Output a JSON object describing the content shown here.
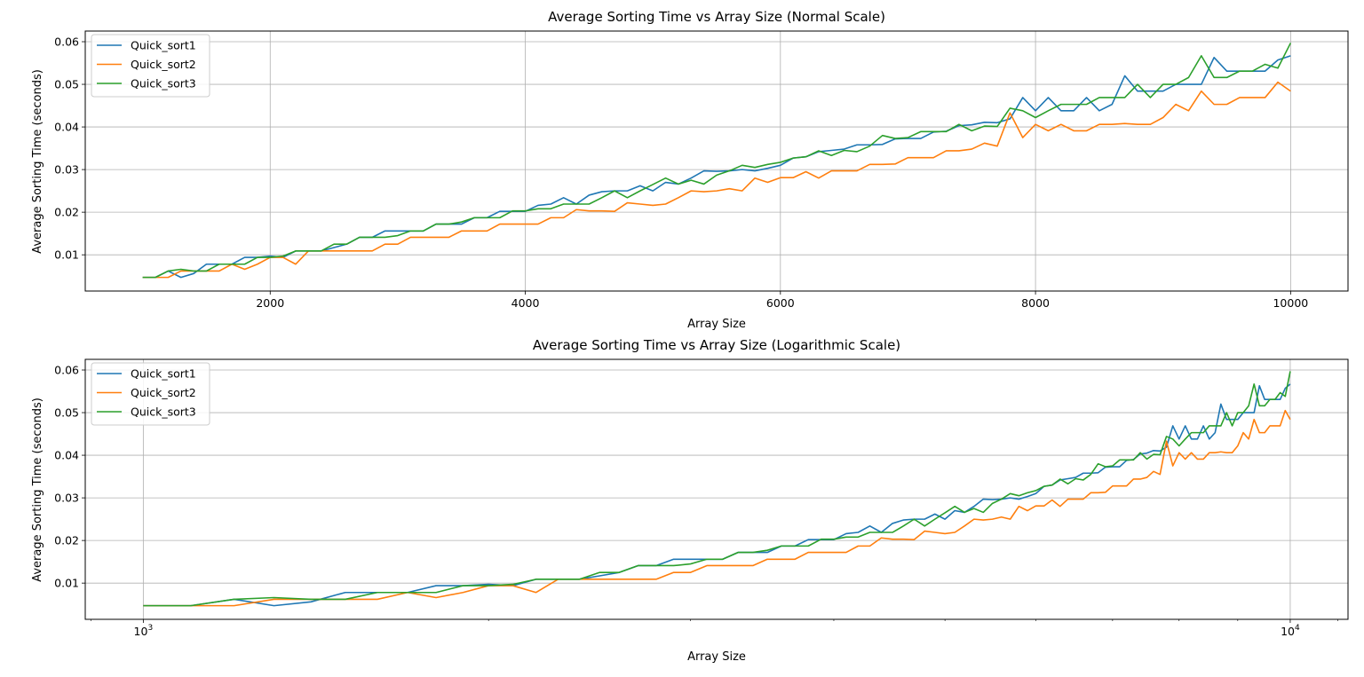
{
  "chart_data": [
    {
      "type": "line",
      "title": "Average Sorting Time vs Array Size (Normal Scale)",
      "xlabel": "Array Size",
      "ylabel": "Average Sorting Time (seconds)",
      "xscale": "linear",
      "xlim": [
        550,
        10450
      ],
      "ylim": [
        0.0015,
        0.0625
      ],
      "xticks": [
        2000,
        4000,
        6000,
        8000,
        10000
      ],
      "xtick_labels": [
        "2000",
        "4000",
        "6000",
        "8000",
        "10000"
      ],
      "yticks": [
        0.01,
        0.02,
        0.03,
        0.04,
        0.05,
        0.06
      ],
      "ytick_labels": [
        "0.01",
        "0.02",
        "0.03",
        "0.04",
        "0.05",
        "0.06"
      ],
      "grid": true,
      "legend": "top-left",
      "x": [
        1000,
        1100,
        1200,
        1300,
        1400,
        1500,
        1600,
        1700,
        1800,
        1900,
        2000,
        2100,
        2200,
        2300,
        2400,
        2500,
        2600,
        2700,
        2800,
        2900,
        3000,
        3100,
        3200,
        3300,
        3400,
        3500,
        3600,
        3700,
        3800,
        3900,
        4000,
        4100,
        4200,
        4300,
        4400,
        4500,
        4600,
        4700,
        4800,
        4900,
        5000,
        5100,
        5200,
        5300,
        5400,
        5500,
        5600,
        5700,
        5800,
        5900,
        6000,
        6100,
        6200,
        6300,
        6400,
        6500,
        6600,
        6700,
        6800,
        6900,
        7000,
        7100,
        7200,
        7300,
        7400,
        7500,
        7600,
        7700,
        7800,
        7900,
        8000,
        8100,
        8200,
        8300,
        8400,
        8500,
        8600,
        8700,
        8800,
        8900,
        9000,
        9100,
        9200,
        9300,
        9400,
        9500,
        9600,
        9700,
        9800,
        9900,
        10000
      ],
      "series": [
        {
          "name": "Quick_sort1",
          "color": "#1f77b4",
          "values": [
            0.0047,
            0.0047,
            0.0062,
            0.0047,
            0.0056,
            0.0078,
            0.0078,
            0.0078,
            0.0094,
            0.0094,
            0.0097,
            0.0094,
            0.0109,
            0.0109,
            0.0109,
            0.0117,
            0.0125,
            0.0141,
            0.0141,
            0.0156,
            0.0156,
            0.0156,
            0.0156,
            0.0172,
            0.0172,
            0.0172,
            0.0187,
            0.0187,
            0.0202,
            0.0202,
            0.0202,
            0.0216,
            0.0219,
            0.0234,
            0.0219,
            0.024,
            0.0248,
            0.025,
            0.025,
            0.0262,
            0.025,
            0.027,
            0.0266,
            0.028,
            0.0297,
            0.0296,
            0.0297,
            0.03,
            0.0297,
            0.0303,
            0.031,
            0.0327,
            0.033,
            0.0342,
            0.0345,
            0.0348,
            0.0358,
            0.0358,
            0.0359,
            0.0372,
            0.0373,
            0.0373,
            0.0388,
            0.039,
            0.0403,
            0.0405,
            0.0411,
            0.041,
            0.0419,
            0.0469,
            0.0438,
            0.0469,
            0.0438,
            0.0438,
            0.0469,
            0.0438,
            0.0453,
            0.052,
            0.0484,
            0.0484,
            0.0484,
            0.05,
            0.05,
            0.05,
            0.0563,
            0.0531,
            0.0531,
            0.0531,
            0.0531,
            0.0557,
            0.0567
          ]
        },
        {
          "name": "Quick_sort2",
          "color": "#ff7f0e",
          "values": [
            0.0047,
            0.0047,
            0.0047,
            0.0062,
            0.0062,
            0.0062,
            0.0062,
            0.0078,
            0.0066,
            0.0078,
            0.0094,
            0.0094,
            0.0078,
            0.0109,
            0.0109,
            0.0109,
            0.0109,
            0.0109,
            0.0109,
            0.0125,
            0.0125,
            0.0141,
            0.0141,
            0.0141,
            0.0141,
            0.0156,
            0.0156,
            0.0156,
            0.0172,
            0.0172,
            0.0172,
            0.0172,
            0.0187,
            0.0187,
            0.0206,
            0.0203,
            0.0203,
            0.0202,
            0.0222,
            0.0219,
            0.0216,
            0.0219,
            0.0234,
            0.025,
            0.0248,
            0.025,
            0.0255,
            0.025,
            0.028,
            0.027,
            0.0281,
            0.0281,
            0.0295,
            0.028,
            0.0297,
            0.0297,
            0.0297,
            0.0312,
            0.0312,
            0.0313,
            0.0328,
            0.0328,
            0.0328,
            0.0344,
            0.0344,
            0.0348,
            0.0362,
            0.0355,
            0.0433,
            0.0375,
            0.0406,
            0.0391,
            0.0406,
            0.0391,
            0.0391,
            0.0406,
            0.0406,
            0.0408,
            0.0406,
            0.0406,
            0.0422,
            0.0453,
            0.0438,
            0.0484,
            0.0453,
            0.0453,
            0.0469,
            0.0469,
            0.0469,
            0.0505,
            0.0484
          ]
        },
        {
          "name": "Quick_sort3",
          "color": "#2ca02c",
          "values": [
            0.0047,
            0.0047,
            0.0062,
            0.0066,
            0.0062,
            0.0062,
            0.0078,
            0.0078,
            0.0078,
            0.0094,
            0.0094,
            0.0097,
            0.0109,
            0.0109,
            0.0109,
            0.0125,
            0.0125,
            0.0141,
            0.0141,
            0.0141,
            0.0145,
            0.0156,
            0.0156,
            0.0172,
            0.0172,
            0.0177,
            0.0187,
            0.0187,
            0.0187,
            0.0203,
            0.0203,
            0.0208,
            0.0208,
            0.0219,
            0.0219,
            0.0219,
            0.0234,
            0.025,
            0.0234,
            0.025,
            0.0265,
            0.028,
            0.0266,
            0.0275,
            0.0266,
            0.0287,
            0.0297,
            0.031,
            0.0305,
            0.0312,
            0.0317,
            0.0327,
            0.033,
            0.0344,
            0.0333,
            0.0345,
            0.0342,
            0.0355,
            0.038,
            0.0373,
            0.0375,
            0.0389,
            0.0389,
            0.0389,
            0.0406,
            0.0391,
            0.0402,
            0.0401,
            0.0444,
            0.0438,
            0.0422,
            0.0438,
            0.0453,
            0.0453,
            0.0453,
            0.0469,
            0.0469,
            0.0469,
            0.05,
            0.0469,
            0.05,
            0.05,
            0.0516,
            0.0567,
            0.0516,
            0.0516,
            0.0531,
            0.0531,
            0.0547,
            0.0538,
            0.0597
          ]
        }
      ]
    },
    {
      "type": "line",
      "title": "Average Sorting Time vs Array Size (Logarithmic Scale)",
      "xlabel": "Array Size",
      "ylabel": "Average Sorting Time (seconds)",
      "xscale": "log",
      "xlim": [
        890,
        11230
      ],
      "ylim": [
        0.0015,
        0.0625
      ],
      "xticks": [
        1000,
        10000
      ],
      "xtick_labels_base": [
        "10",
        "10"
      ],
      "xtick_labels_exp": [
        "3",
        "4"
      ],
      "yticks": [
        0.01,
        0.02,
        0.03,
        0.04,
        0.05,
        0.06
      ],
      "ytick_labels": [
        "0.01",
        "0.02",
        "0.03",
        "0.04",
        "0.05",
        "0.06"
      ],
      "grid": true,
      "legend": "top-left"
    }
  ]
}
